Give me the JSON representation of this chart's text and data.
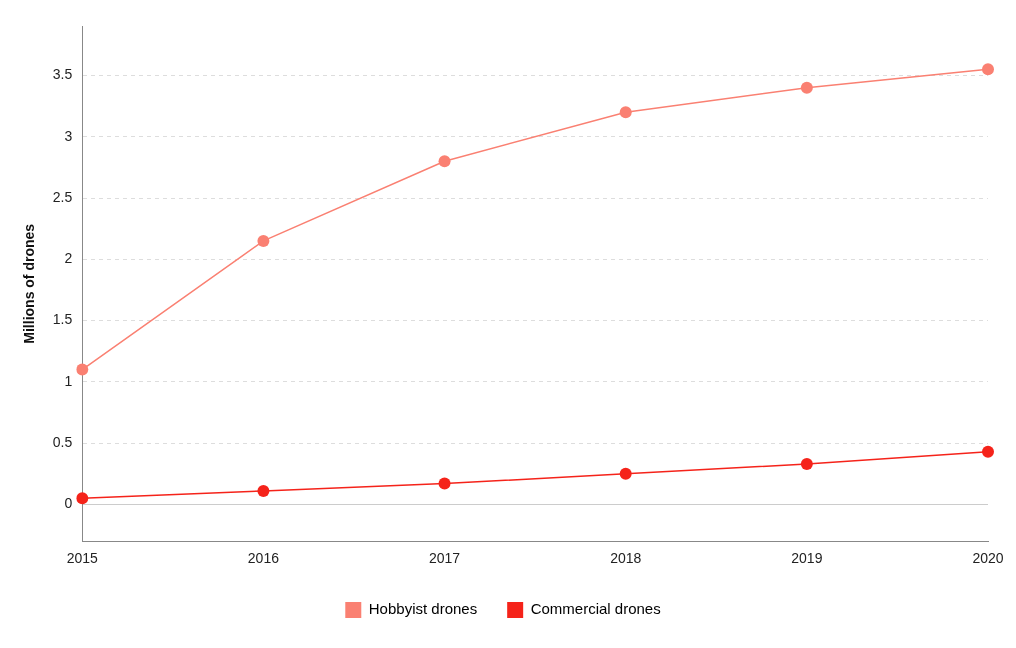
{
  "chart_data": {
    "type": "line",
    "categories": [
      "2015",
      "2016",
      "2017",
      "2018",
      "2019",
      "2020"
    ],
    "ylabel": "Millions of drones",
    "ylim": [
      -0.3,
      3.9
    ],
    "yticks": [
      0,
      0.5,
      1,
      1.5,
      2,
      2.5,
      3,
      3.5
    ],
    "grid": "y",
    "legend": "bottom",
    "marker": "circle",
    "line_style": "solid",
    "series": [
      {
        "name": "Hobbyist drones",
        "color": "#fa8072",
        "values": [
          1.1,
          2.15,
          2.8,
          3.2,
          3.4,
          3.55
        ]
      },
      {
        "name": "Commercial drones",
        "color": "#f5231a",
        "values": [
          0.05,
          0.11,
          0.17,
          0.25,
          0.33,
          0.43
        ]
      }
    ]
  }
}
